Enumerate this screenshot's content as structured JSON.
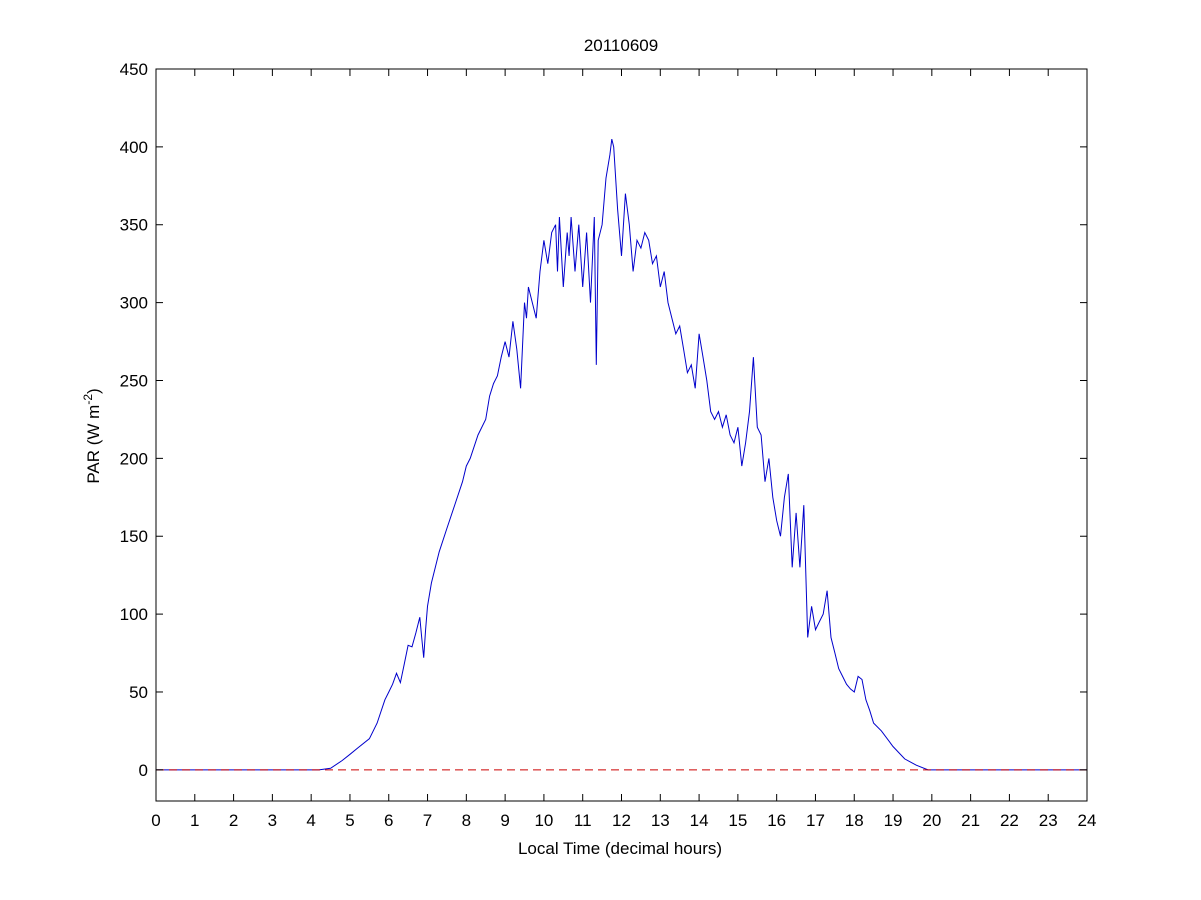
{
  "chart_data": {
    "type": "line",
    "title": "20110609",
    "xlabel": "Local Time (decimal hours)",
    "ylabel": "PAR (W m",
    "ylabel_superscript": "-2",
    "ylabel_suffix": ")",
    "xlim": [
      0,
      24
    ],
    "ylim": [
      -20,
      450
    ],
    "xticks": [
      0,
      1,
      2,
      3,
      4,
      5,
      6,
      7,
      8,
      9,
      10,
      11,
      12,
      13,
      14,
      15,
      16,
      17,
      18,
      19,
      20,
      21,
      22,
      23,
      24
    ],
    "yticks": [
      0,
      50,
      100,
      150,
      200,
      250,
      300,
      350,
      400,
      450
    ],
    "grid": false,
    "legend": "none",
    "series": [
      {
        "color": "#0000cc",
        "style": "solid",
        "x": [
          0,
          4.2,
          4.5,
          4.8,
          5.0,
          5.2,
          5.5,
          5.7,
          5.9,
          6.0,
          6.1,
          6.2,
          6.3,
          6.4,
          6.5,
          6.6,
          6.7,
          6.8,
          6.85,
          6.9,
          6.95,
          7.0,
          7.1,
          7.3,
          7.5,
          7.7,
          7.9,
          8.0,
          8.1,
          8.3,
          8.5,
          8.6,
          8.7,
          8.8,
          8.9,
          9.0,
          9.1,
          9.2,
          9.3,
          9.4,
          9.5,
          9.55,
          9.6,
          9.7,
          9.8,
          9.9,
          10.0,
          10.1,
          10.2,
          10.3,
          10.35,
          10.4,
          10.5,
          10.6,
          10.65,
          10.7,
          10.8,
          10.9,
          11.0,
          11.1,
          11.2,
          11.3,
          11.35,
          11.4,
          11.5,
          11.6,
          11.7,
          11.75,
          11.8,
          11.9,
          12.0,
          12.1,
          12.2,
          12.3,
          12.4,
          12.5,
          12.6,
          12.7,
          12.8,
          12.9,
          13.0,
          13.1,
          13.2,
          13.3,
          13.4,
          13.5,
          13.6,
          13.7,
          13.8,
          13.9,
          14.0,
          14.1,
          14.2,
          14.3,
          14.4,
          14.5,
          14.6,
          14.7,
          14.8,
          14.9,
          15.0,
          15.1,
          15.2,
          15.3,
          15.4,
          15.5,
          15.6,
          15.7,
          15.8,
          15.9,
          16.0,
          16.1,
          16.2,
          16.3,
          16.4,
          16.5,
          16.6,
          16.7,
          16.8,
          16.9,
          17.0,
          17.1,
          17.2,
          17.3,
          17.4,
          17.5,
          17.6,
          17.7,
          17.8,
          17.9,
          18.0,
          18.1,
          18.2,
          18.3,
          18.4,
          18.5,
          18.7,
          19.0,
          19.3,
          19.6,
          19.9,
          20.2,
          24
        ],
        "y": [
          0,
          0,
          1,
          6,
          10,
          14,
          20,
          30,
          45,
          50,
          55,
          62,
          56,
          68,
          80,
          79,
          88,
          98,
          85,
          72,
          90,
          105,
          120,
          140,
          155,
          170,
          185,
          195,
          200,
          215,
          225,
          240,
          248,
          253,
          265,
          275,
          265,
          288,
          270,
          245,
          300,
          290,
          310,
          300,
          290,
          320,
          340,
          325,
          345,
          350,
          320,
          355,
          310,
          345,
          330,
          355,
          320,
          350,
          310,
          345,
          300,
          355,
          260,
          340,
          350,
          380,
          395,
          405,
          400,
          360,
          330,
          370,
          350,
          320,
          340,
          335,
          345,
          340,
          325,
          330,
          310,
          320,
          300,
          290,
          280,
          285,
          270,
          255,
          260,
          245,
          280,
          265,
          250,
          230,
          225,
          230,
          220,
          228,
          215,
          210,
          220,
          195,
          210,
          230,
          265,
          220,
          215,
          185,
          200,
          175,
          160,
          150,
          175,
          190,
          130,
          165,
          130,
          170,
          85,
          105,
          90,
          95,
          100,
          115,
          85,
          75,
          65,
          60,
          55,
          52,
          50,
          60,
          58,
          45,
          38,
          30,
          25,
          15,
          7,
          3,
          0,
          0,
          0
        ]
      },
      {
        "color": "#cc0000",
        "style": "dashed",
        "x": [
          0,
          24
        ],
        "y": [
          0,
          0
        ]
      }
    ]
  }
}
